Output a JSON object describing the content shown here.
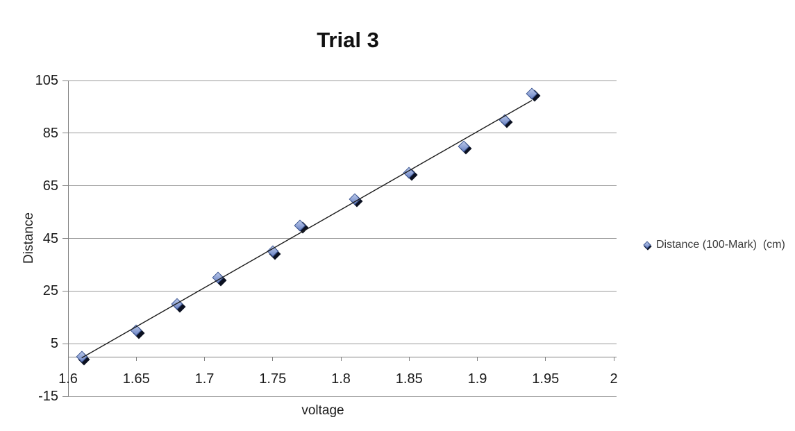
{
  "chart": {
    "title": "Trial 3",
    "x_axis": {
      "label": "voltage",
      "ticks": [
        "1.6",
        "1.65",
        "1.7",
        "1.75",
        "1.8",
        "1.85",
        "1.9",
        "1.95",
        "2"
      ]
    },
    "y_axis": {
      "label": "Distance",
      "ticks": [
        "105",
        "85",
        "65",
        "45",
        "25",
        "5",
        "-15"
      ]
    },
    "legend": {
      "label": "Distance (100-Mark)  (cm)",
      "marker": "blue-diamond-icon"
    },
    "colors": {
      "gridline": "#999999",
      "axis": "#808080",
      "trendline": "#1c1c1c",
      "text": "#1a1a1a",
      "marker_light": "#b9c8ea",
      "marker_mid": "#8fa3d6",
      "marker_dark": "#6b83c3",
      "marker_border": "#35508f",
      "marker_shadow": "#0b1020"
    }
  },
  "chart_data": {
    "type": "scatter",
    "title": "Trial 3",
    "xlabel": "voltage",
    "ylabel": "Distance",
    "xlim": [
      1.6,
      2.0
    ],
    "ylim": [
      -15,
      105
    ],
    "x_tick_step": 0.05,
    "y_tick_step": 20,
    "grid": "horizontal",
    "legend_position": "right",
    "series": [
      {
        "name": "Distance (100-Mark) (cm)",
        "marker": "diamond",
        "x": [
          1.61,
          1.65,
          1.68,
          1.71,
          1.75,
          1.77,
          1.81,
          1.85,
          1.89,
          1.92,
          1.94
        ],
        "y": [
          0,
          10,
          20,
          30,
          40,
          50,
          60,
          70,
          80,
          90,
          100
        ]
      }
    ],
    "trendline": {
      "type": "linear",
      "series": "Distance (100-Mark) (cm)"
    }
  }
}
